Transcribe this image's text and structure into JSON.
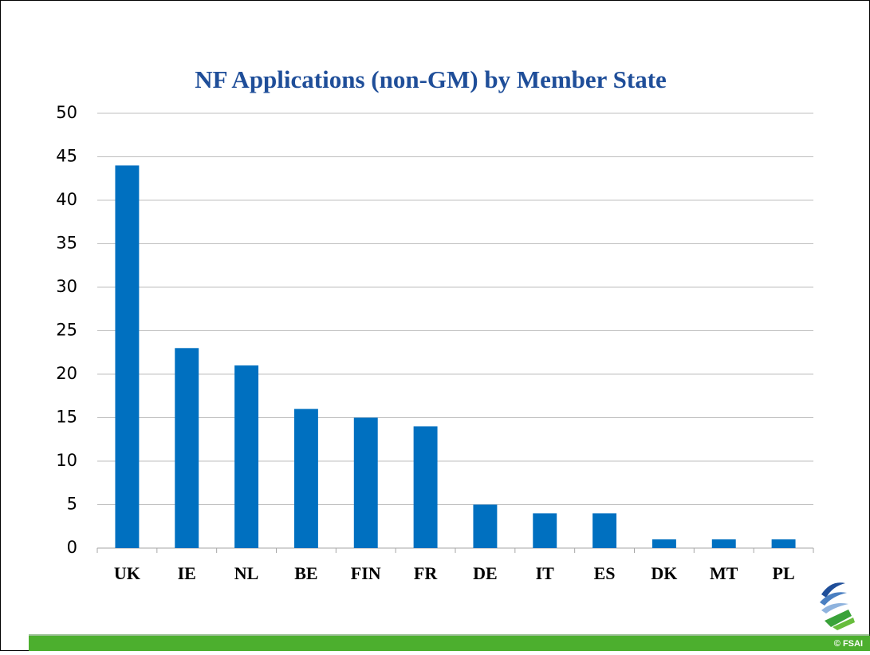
{
  "chart_data": {
    "type": "bar",
    "title": "NF Applications (non-GM) by Member State",
    "categories": [
      "UK",
      "IE",
      "NL",
      "BE",
      "FIN",
      "FR",
      "DE",
      "IT",
      "ES",
      "DK",
      "MT",
      "PL"
    ],
    "values": [
      44,
      23,
      21,
      16,
      15,
      14,
      5,
      4,
      4,
      1,
      1,
      1
    ],
    "color": "#0070c0",
    "ylim": [
      0,
      50
    ],
    "yticks": [
      0,
      5,
      10,
      15,
      20,
      25,
      30,
      35,
      40,
      45,
      50
    ],
    "grid": true
  },
  "footer": {
    "copyright": "© FSAI"
  }
}
